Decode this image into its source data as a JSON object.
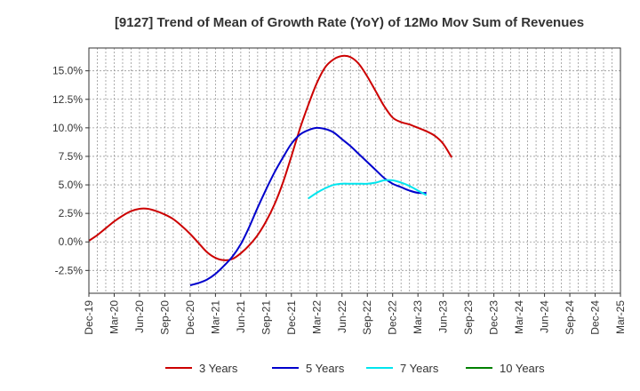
{
  "chart_data": {
    "type": "line",
    "title": "[9127]  Trend of Mean of Growth Rate (YoY) of 12Mo Mov Sum of Revenues",
    "xlabel": "",
    "ylabel": "",
    "ylim": [
      -4.5,
      17.0
    ],
    "grid": true,
    "legend_position": "bottom",
    "y_ticks": [
      {
        "value": 15.0,
        "label": "15.0%"
      },
      {
        "value": 12.5,
        "label": "12.5%"
      },
      {
        "value": 10.0,
        "label": "10.0%"
      },
      {
        "value": 7.5,
        "label": "7.5%"
      },
      {
        "value": 5.0,
        "label": "5.0%"
      },
      {
        "value": 2.5,
        "label": "2.5%"
      },
      {
        "value": 0.0,
        "label": "0.0%"
      },
      {
        "value": -2.5,
        "label": "-2.5%"
      }
    ],
    "x_ticks": [
      "Dec-19",
      "Mar-20",
      "Jun-20",
      "Sep-20",
      "Dec-20",
      "Mar-21",
      "Jun-21",
      "Sep-21",
      "Dec-21",
      "Mar-22",
      "Jun-22",
      "Sep-22",
      "Dec-22",
      "Mar-23",
      "Jun-23",
      "Sep-23",
      "Dec-23",
      "Mar-24",
      "Jun-24",
      "Sep-24",
      "Dec-24",
      "Mar-25"
    ],
    "series": [
      {
        "name": "3 Years",
        "color": "#cc0000",
        "start_index": 0,
        "values": [
          0.1,
          0.6,
          1.2,
          1.8,
          2.3,
          2.7,
          2.9,
          2.9,
          2.7,
          2.4,
          2.0,
          1.4,
          0.7,
          -0.1,
          -0.9,
          -1.4,
          -1.6,
          -1.5,
          -1.0,
          -0.3,
          0.6,
          1.8,
          3.3,
          5.2,
          7.5,
          9.9,
          12.0,
          13.9,
          15.3,
          16.0,
          16.3,
          16.2,
          15.6,
          14.5,
          13.2,
          11.9,
          10.9,
          10.5,
          10.3,
          10.0,
          9.7,
          9.3,
          8.6,
          7.4
        ]
      },
      {
        "name": "5 Years",
        "color": "#0000cc",
        "start_index": 12,
        "values": [
          -3.8,
          -3.6,
          -3.3,
          -2.8,
          -2.1,
          -1.3,
          -0.2,
          1.3,
          3.0,
          4.6,
          6.1,
          7.4,
          8.6,
          9.4,
          9.8,
          10.0,
          9.9,
          9.6,
          9.0,
          8.4,
          7.7,
          7.0,
          6.3,
          5.6,
          5.1,
          4.8,
          4.5,
          4.3,
          4.3
        ]
      },
      {
        "name": "7 Years",
        "color": "#00e5ee",
        "start_index": 26,
        "values": [
          3.8,
          4.3,
          4.7,
          5.0,
          5.1,
          5.1,
          5.1,
          5.1,
          5.2,
          5.4,
          5.4,
          5.2,
          4.9,
          4.5,
          4.1
        ]
      },
      {
        "name": "10 Years",
        "color": "#008000",
        "start_index": 0,
        "values": []
      }
    ]
  }
}
